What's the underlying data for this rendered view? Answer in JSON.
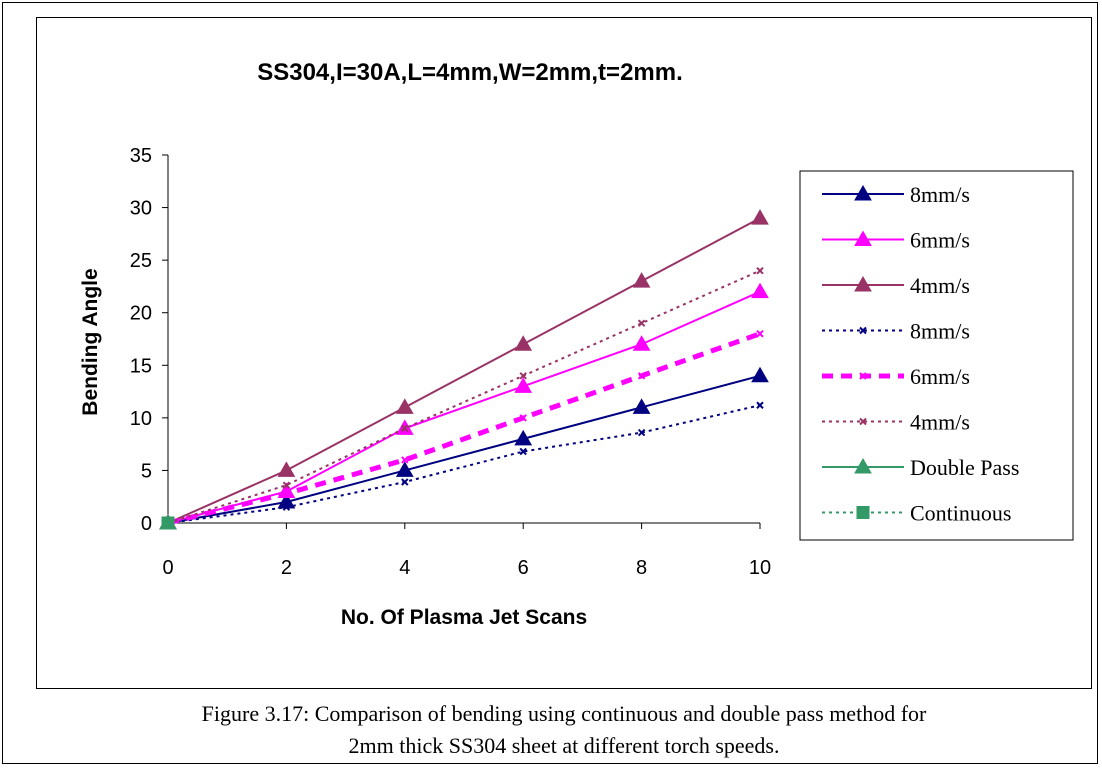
{
  "chart_data": {
    "type": "line",
    "title": "SS304,I=30A,L=4mm,W=2mm,t=2mm.",
    "xlabel": "No. Of Plasma Jet Scans",
    "ylabel": "Bending Angle",
    "xlim": [
      0,
      10
    ],
    "ylim": [
      0,
      35
    ],
    "xticks": [
      0,
      2,
      4,
      6,
      8,
      10
    ],
    "yticks": [
      0,
      5,
      10,
      15,
      20,
      25,
      30,
      35
    ],
    "grid": false,
    "legend_position": "right",
    "series": [
      {
        "name": "8mm/s",
        "x": [
          0,
          2,
          4,
          6,
          8,
          10
        ],
        "y": [
          0,
          2,
          5,
          8,
          11,
          14
        ],
        "color": "#000080",
        "dash": "solid",
        "marker": "triangle",
        "width": 2
      },
      {
        "name": "6mm/s",
        "x": [
          0,
          2,
          4,
          6,
          8,
          10
        ],
        "y": [
          0,
          3,
          9,
          13,
          17,
          22
        ],
        "color": "#ff00ff",
        "dash": "solid",
        "marker": "triangle",
        "width": 2
      },
      {
        "name": "4mm/s",
        "x": [
          0,
          2,
          4,
          6,
          8,
          10
        ],
        "y": [
          0,
          5,
          11,
          17,
          23,
          29
        ],
        "color": "#993366",
        "dash": "solid",
        "marker": "triangle",
        "width": 2
      },
      {
        "name": "8mm/s",
        "x": [
          0,
          2,
          4,
          6,
          8,
          10
        ],
        "y": [
          0,
          1.5,
          3.9,
          6.8,
          8.6,
          11.2
        ],
        "color": "#000080",
        "dash": "dotted",
        "marker": "x",
        "width": 2
      },
      {
        "name": "6mm/s",
        "x": [
          0,
          2,
          4,
          6,
          8,
          10
        ],
        "y": [
          0,
          2.8,
          6,
          10,
          14,
          18
        ],
        "color": "#ff00ff",
        "dash": "dashed",
        "marker": "x",
        "width": 5
      },
      {
        "name": "4mm/s",
        "x": [
          0,
          2,
          4,
          6,
          8,
          10
        ],
        "y": [
          0,
          3.6,
          9,
          14,
          19,
          24
        ],
        "color": "#993366",
        "dash": "dotted",
        "marker": "x",
        "width": 2
      },
      {
        "name": "Double Pass",
        "x": [
          0
        ],
        "y": [
          0
        ],
        "color": "#339966",
        "dash": "solid",
        "marker": "triangle",
        "width": 2
      },
      {
        "name": "Continuous",
        "x": [
          0
        ],
        "y": [
          0
        ],
        "color": "#339966",
        "dash": "dotted",
        "marker": "square",
        "width": 2
      }
    ]
  },
  "caption": {
    "line1": "Figure 3.17: Comparison of bending using continuous and double pass method for",
    "line2": "2mm thick SS304 sheet at different torch speeds."
  }
}
